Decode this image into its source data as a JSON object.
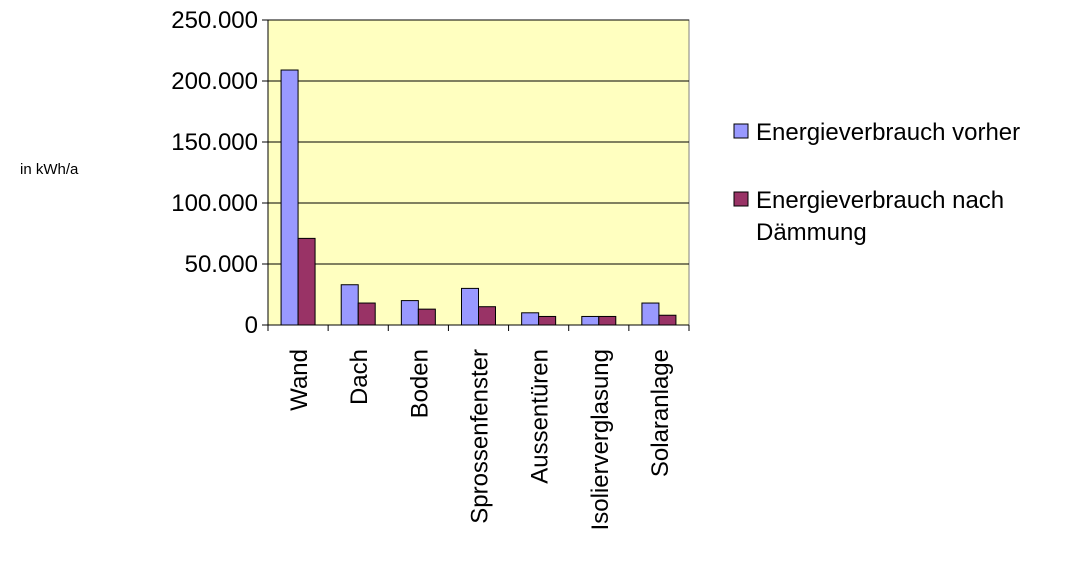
{
  "chart_data": {
    "type": "bar",
    "title": "",
    "xlabel": "",
    "ylabel": "in kWh/a",
    "ylim": [
      0,
      250000
    ],
    "yticks": [
      0,
      50000,
      100000,
      150000,
      200000,
      250000
    ],
    "ytick_labels": [
      "0",
      "50.000",
      "100.000",
      "150.000",
      "200.000",
      "250.000"
    ],
    "categories": [
      "Wand",
      "Dach",
      "Boden",
      "Sprossenfenster",
      "Aussentüren",
      "Isolierverglasung",
      "Solaranlage"
    ],
    "series": [
      {
        "name": "Energieverbrauch vorher",
        "values": [
          209000,
          33000,
          20000,
          30000,
          10000,
          7000,
          18000
        ],
        "color": "#9999ff"
      },
      {
        "name": "Energieverbrauch nach Dämmung",
        "legend_lines": [
          "Energieverbrauch nach",
          "Dämmung"
        ],
        "values": [
          71000,
          18000,
          13000,
          15000,
          7000,
          7000,
          8000
        ],
        "color": "#993366"
      }
    ],
    "plot_background": "#ffffc0",
    "grid": true,
    "legend_position": "right"
  }
}
